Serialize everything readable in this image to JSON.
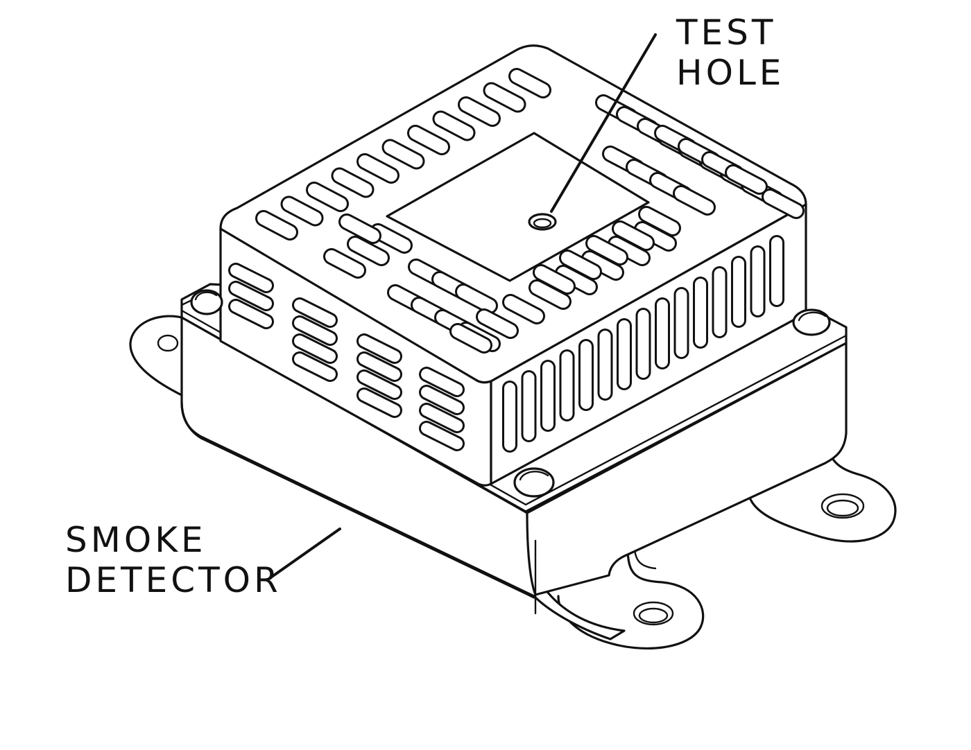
{
  "labels": {
    "test_hole": [
      "TEST",
      "HOLE"
    ],
    "smoke_detector": [
      "SMOKE",
      "DETECTOR"
    ]
  }
}
